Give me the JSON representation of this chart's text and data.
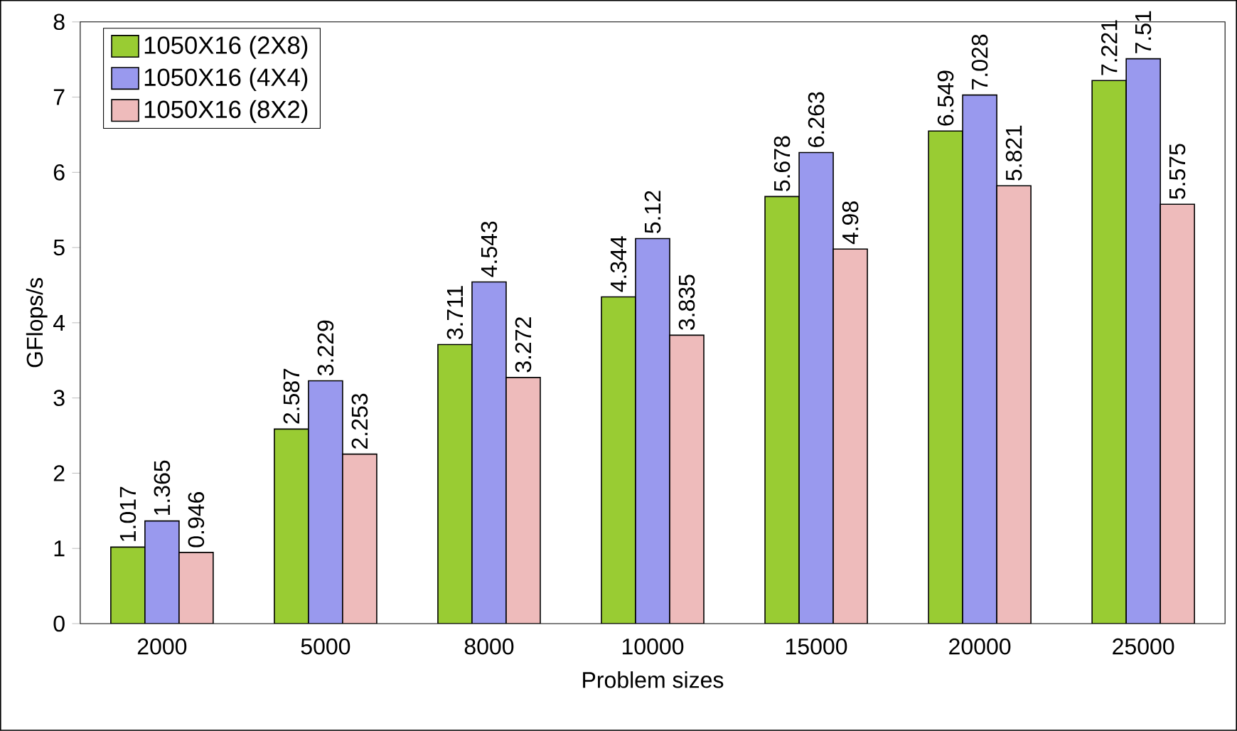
{
  "chart_data": {
    "type": "bar",
    "xlabel": "Problem sizes",
    "ylabel": "GFlops/s",
    "categories": [
      "2000",
      "5000",
      "8000",
      "10000",
      "15000",
      "20000",
      "25000"
    ],
    "series": [
      {
        "name": "1050X16 (2X8)",
        "color": "#99cc33",
        "values": [
          1.017,
          2.587,
          3.711,
          4.344,
          5.678,
          6.549,
          7.221
        ]
      },
      {
        "name": "1050X16 (4X4)",
        "color": "#9999ee",
        "values": [
          1.365,
          3.229,
          4.543,
          5.12,
          6.263,
          7.028,
          7.51
        ]
      },
      {
        "name": "1050X16 (8X2)",
        "color": "#eebbbb",
        "values": [
          0.946,
          2.253,
          3.272,
          3.835,
          4.98,
          5.821,
          5.575
        ]
      }
    ],
    "ylim": [
      0,
      8
    ],
    "yticks": [
      0,
      1,
      2,
      3,
      4,
      5,
      6,
      7,
      8
    ],
    "data_labels": true,
    "legend": "top left",
    "grid": false
  }
}
